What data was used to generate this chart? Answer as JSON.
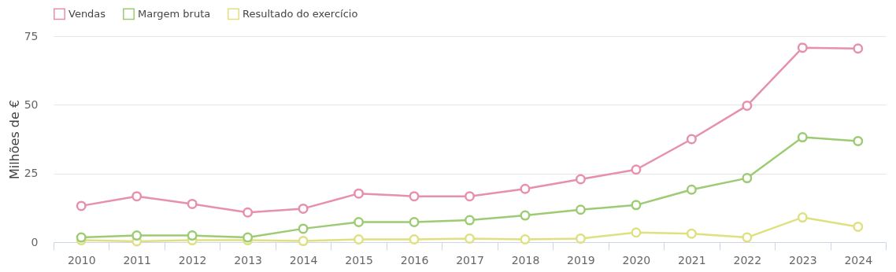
{
  "chart_data": {
    "type": "line",
    "ylabel": "Milhões de €",
    "categories": [
      "2010",
      "2011",
      "2012",
      "2013",
      "2014",
      "2015",
      "2016",
      "2017",
      "2018",
      "2019",
      "2020",
      "2021",
      "2022",
      "2023",
      "2024"
    ],
    "series": [
      {
        "name": "Vendas",
        "color": "#e68fae",
        "values": [
          13.2,
          16.7,
          13.9,
          10.8,
          12.2,
          17.7,
          16.7,
          16.7,
          19.4,
          22.9,
          26.4,
          37.5,
          49.7,
          70.8,
          70.5
        ]
      },
      {
        "name": "Margem bruta",
        "color": "#9dcb73",
        "values": [
          1.7,
          2.4,
          2.4,
          1.7,
          4.9,
          7.3,
          7.3,
          8.0,
          9.7,
          11.8,
          13.5,
          19.1,
          23.3,
          38.2,
          36.8
        ]
      },
      {
        "name": "Resultado do exercício",
        "color": "#dfe07f",
        "values": [
          0.7,
          0.3,
          0.7,
          0.7,
          0.4,
          1.0,
          1.0,
          1.3,
          1.0,
          1.3,
          3.5,
          3.1,
          1.7,
          9.0,
          5.6
        ]
      }
    ],
    "ylim": [
      0,
      75
    ],
    "yticks": [
      0,
      25,
      50,
      75
    ],
    "grid": "y",
    "legend": "top left",
    "marker": "circle",
    "line_style": "solid"
  }
}
